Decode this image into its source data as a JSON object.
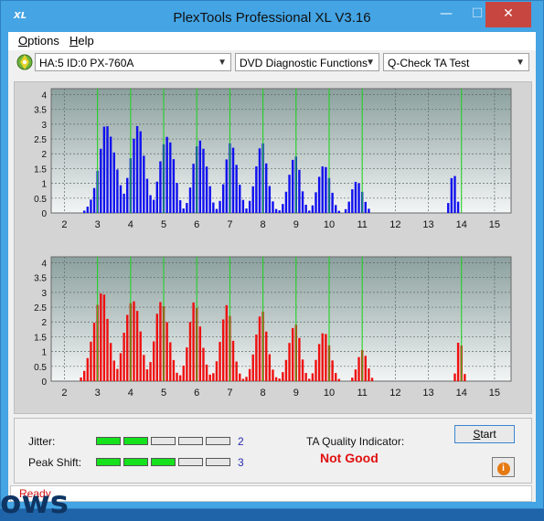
{
  "window": {
    "title": "PlexTools Professional XL V3.16",
    "app_icon_text": "XL",
    "minimize": "—",
    "maximize": "☐",
    "close": "✕"
  },
  "menu": {
    "options": "ptions",
    "options_key": "O",
    "help": "elp",
    "help_key": "H"
  },
  "toolbar": {
    "drive": "HA:5 ID:0  PX-760A",
    "function": "DVD Diagnostic Functions",
    "test": "Q-Check TA Test"
  },
  "colors": {
    "upper_bars": "#1010ee",
    "lower_bars": "#ee1010",
    "gridline": "#19d619",
    "led_on": "#15e11d"
  },
  "chart_data": [
    {
      "type": "bar",
      "xlim": [
        1.6,
        15.5
      ],
      "ylim": [
        0,
        4.2
      ],
      "x_ticks": [
        "2",
        "3",
        "4",
        "5",
        "6",
        "7",
        "8",
        "9",
        "10",
        "11",
        "12",
        "13",
        "14",
        "15"
      ],
      "y_ticks": [
        "4",
        "3.5",
        "3",
        "2.5",
        "2",
        "1.5",
        "1",
        "0.5",
        "0"
      ],
      "highlight_x": [
        3,
        4,
        5,
        6,
        7,
        8,
        9,
        10,
        11,
        14
      ],
      "bar_color": "upper_bars",
      "peaks": [
        {
          "center": 3.3,
          "height": 3.15,
          "width": 0.26
        },
        {
          "center": 4.2,
          "height": 3.1,
          "width": 0.23
        },
        {
          "center": 5.1,
          "height": 2.95,
          "width": 0.21
        },
        {
          "center": 6.1,
          "height": 2.8,
          "width": 0.2
        },
        {
          "center": 7.05,
          "height": 2.55,
          "width": 0.19
        },
        {
          "center": 7.95,
          "height": 2.45,
          "width": 0.19
        },
        {
          "center": 8.95,
          "height": 2.1,
          "width": 0.18
        },
        {
          "center": 9.85,
          "height": 1.85,
          "width": 0.18
        },
        {
          "center": 10.85,
          "height": 1.2,
          "width": 0.17
        },
        {
          "center": 13.75,
          "height": 1.55,
          "width": 0.09
        }
      ]
    },
    {
      "type": "bar",
      "xlim": [
        1.6,
        15.5
      ],
      "ylim": [
        0,
        4.2
      ],
      "x_ticks": [
        "2",
        "3",
        "4",
        "5",
        "6",
        "7",
        "8",
        "9",
        "10",
        "11",
        "12",
        "13",
        "14",
        "15"
      ],
      "y_ticks": [
        "4",
        "3.5",
        "3",
        "2.5",
        "2",
        "1.5",
        "1",
        "0.5",
        "0"
      ],
      "highlight_x": [
        3,
        4,
        5,
        6,
        7,
        8,
        9,
        10,
        11,
        14
      ],
      "bar_color": "lower_bars",
      "peaks": [
        {
          "center": 3.1,
          "height": 3.2,
          "width": 0.24
        },
        {
          "center": 4.05,
          "height": 3.1,
          "width": 0.23
        },
        {
          "center": 4.95,
          "height": 2.95,
          "width": 0.21
        },
        {
          "center": 5.95,
          "height": 2.8,
          "width": 0.2
        },
        {
          "center": 6.9,
          "height": 2.65,
          "width": 0.19
        },
        {
          "center": 7.95,
          "height": 2.45,
          "width": 0.19
        },
        {
          "center": 8.95,
          "height": 2.1,
          "width": 0.18
        },
        {
          "center": 9.85,
          "height": 1.9,
          "width": 0.18
        },
        {
          "center": 11.0,
          "height": 1.2,
          "width": 0.14
        },
        {
          "center": 13.95,
          "height": 1.6,
          "width": 0.08
        }
      ]
    }
  ],
  "quality": {
    "jitter_label": "Jitter:",
    "jitter_value": "2",
    "jitter_on": 2,
    "peak_label": "Peak Shift:",
    "peak_value": "3",
    "peak_on": 3,
    "segments": 5,
    "ta_label": "TA Quality Indicator:",
    "ta_result": "Not Good",
    "start": "tart",
    "start_key": "S",
    "info_icon": "i"
  },
  "status": "Ready",
  "background_text": "ows"
}
